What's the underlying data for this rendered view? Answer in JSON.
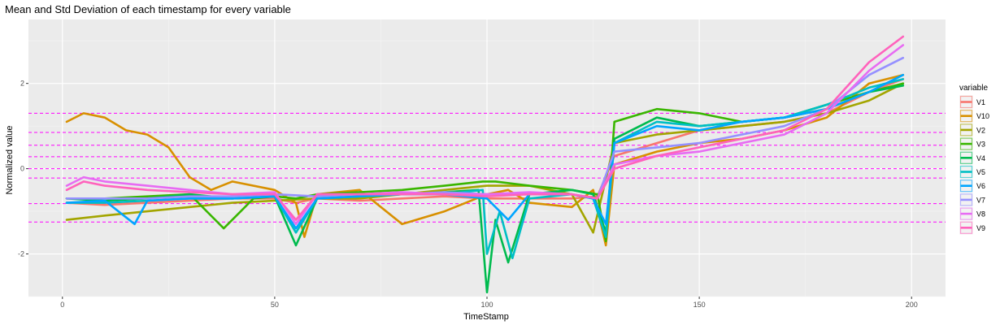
{
  "chart_data": {
    "type": "line",
    "title": "Mean and Std Deviation of each timestamp for every variable",
    "xlabel": "TimeStamp",
    "ylabel": "Normalized value",
    "xlim": [
      -8,
      208
    ],
    "ylim": [
      -3.0,
      3.5
    ],
    "x_ticks": [
      0,
      50,
      100,
      150,
      200
    ],
    "y_ticks": [
      -2,
      0,
      2
    ],
    "grid": true,
    "legend": {
      "title": "variable",
      "position": "right"
    },
    "reference_lines": {
      "style": "dashed",
      "color": "#ff00ff",
      "y": [
        1.3,
        0.85,
        0.55,
        0.28,
        0.0,
        -0.22,
        -0.82,
        -1.25
      ]
    },
    "series": [
      {
        "name": "V1",
        "color": "#F8766D",
        "x": [
          1,
          10,
          20,
          30,
          40,
          50,
          55,
          60,
          70,
          80,
          90,
          100,
          110,
          120,
          126,
          130,
          140,
          150,
          160,
          170,
          180,
          190,
          198
        ],
        "y": [
          -0.8,
          -0.85,
          -0.8,
          -0.75,
          -0.7,
          -0.7,
          -0.8,
          -0.7,
          -0.75,
          -0.7,
          -0.65,
          -0.7,
          -0.7,
          -0.7,
          -0.65,
          0.3,
          0.6,
          0.9,
          1.0,
          1.1,
          1.3,
          1.8,
          2.1
        ]
      },
      {
        "name": "V10",
        "color": "#D89000",
        "x": [
          1,
          5,
          10,
          15,
          20,
          25,
          30,
          35,
          40,
          50,
          55,
          57,
          60,
          70,
          80,
          90,
          100,
          105,
          110,
          120,
          125,
          128,
          130,
          140,
          150,
          160,
          170,
          180,
          190,
          198
        ],
        "y": [
          1.1,
          1.3,
          1.2,
          0.9,
          0.8,
          0.5,
          -0.2,
          -0.5,
          -0.3,
          -0.5,
          -0.8,
          -1.6,
          -0.6,
          -0.5,
          -1.3,
          -1.0,
          -0.6,
          -0.5,
          -0.8,
          -0.9,
          -0.5,
          -1.8,
          0.1,
          0.4,
          0.6,
          0.7,
          0.9,
          1.2,
          2.0,
          2.2
        ]
      },
      {
        "name": "V2",
        "color": "#A3A500",
        "x": [
          1,
          10,
          20,
          30,
          40,
          50,
          60,
          70,
          80,
          90,
          100,
          110,
          120,
          125,
          130,
          140,
          150,
          160,
          170,
          180,
          190,
          198
        ],
        "y": [
          -1.2,
          -1.1,
          -1.0,
          -0.9,
          -0.8,
          -0.75,
          -0.7,
          -0.7,
          -0.6,
          -0.5,
          -0.4,
          -0.4,
          -0.6,
          -1.5,
          0.6,
          0.8,
          0.9,
          1.0,
          1.1,
          1.3,
          1.6,
          2.0
        ]
      },
      {
        "name": "V3",
        "color": "#39B600",
        "x": [
          1,
          10,
          20,
          30,
          38,
          45,
          50,
          55,
          60,
          70,
          80,
          90,
          99,
          102,
          110,
          120,
          126,
          128,
          130,
          140,
          150,
          160,
          170,
          180,
          190,
          198
        ],
        "y": [
          -0.7,
          -0.7,
          -0.65,
          -0.6,
          -1.4,
          -0.7,
          -0.65,
          -0.7,
          -0.6,
          -0.55,
          -0.5,
          -0.4,
          -0.3,
          -0.3,
          -0.4,
          -0.5,
          -0.6,
          -1.7,
          1.1,
          1.4,
          1.3,
          1.1,
          1.2,
          1.5,
          1.8,
          2.0
        ]
      },
      {
        "name": "V4",
        "color": "#00BB4E",
        "x": [
          1,
          10,
          20,
          30,
          40,
          50,
          55,
          60,
          70,
          80,
          90,
          98,
          100,
          102,
          105,
          110,
          120,
          125,
          128,
          130,
          140,
          150,
          160,
          170,
          180,
          190,
          198
        ],
        "y": [
          -0.7,
          -0.75,
          -0.7,
          -0.6,
          -0.7,
          -0.65,
          -1.8,
          -0.7,
          -0.65,
          -0.6,
          -0.55,
          -0.5,
          -2.9,
          -1.2,
          -2.2,
          -0.6,
          -0.5,
          -0.6,
          -1.5,
          0.7,
          1.2,
          1.0,
          1.1,
          1.2,
          1.4,
          1.8,
          1.95
        ]
      },
      {
        "name": "V5",
        "color": "#00BFC4",
        "x": [
          1,
          10,
          20,
          30,
          40,
          50,
          55,
          60,
          70,
          80,
          90,
          99,
          100,
          103,
          106,
          110,
          120,
          125,
          128,
          130,
          140,
          150,
          160,
          170,
          180,
          190,
          198
        ],
        "y": [
          -0.8,
          -0.8,
          -0.75,
          -0.7,
          -0.7,
          -0.65,
          -1.5,
          -0.7,
          -0.65,
          -0.6,
          -0.6,
          -0.5,
          -2.0,
          -1.0,
          -2.1,
          -0.7,
          -0.6,
          -0.7,
          -1.6,
          0.6,
          1.1,
          1.0,
          1.1,
          1.2,
          1.5,
          1.9,
          2.1
        ]
      },
      {
        "name": "V6",
        "color": "#00A5FF",
        "x": [
          1,
          10,
          17,
          20,
          30,
          40,
          50,
          55,
          60,
          70,
          80,
          90,
          100,
          105,
          110,
          120,
          125,
          128,
          130,
          140,
          150,
          160,
          170,
          180,
          190,
          198
        ],
        "y": [
          -0.8,
          -0.75,
          -1.3,
          -0.75,
          -0.7,
          -0.7,
          -0.65,
          -1.4,
          -0.7,
          -0.65,
          -0.6,
          -0.6,
          -0.7,
          -1.2,
          -0.6,
          -0.6,
          -0.7,
          -1.3,
          0.6,
          1.0,
          0.9,
          1.1,
          1.2,
          1.4,
          1.8,
          2.2
        ]
      },
      {
        "name": "V7",
        "color": "#9590FF",
        "x": [
          1,
          10,
          20,
          30,
          40,
          50,
          60,
          70,
          80,
          90,
          100,
          110,
          120,
          126,
          130,
          140,
          150,
          160,
          170,
          180,
          190,
          198
        ],
        "y": [
          -0.7,
          -0.7,
          -0.7,
          -0.65,
          -0.65,
          -0.6,
          -0.65,
          -0.6,
          -0.6,
          -0.55,
          -0.6,
          -0.6,
          -0.6,
          -0.7,
          0.4,
          0.5,
          0.6,
          0.8,
          1.0,
          1.4,
          2.2,
          2.6
        ]
      },
      {
        "name": "V8",
        "color": "#E76BF3",
        "x": [
          1,
          5,
          10,
          20,
          30,
          40,
          50,
          55,
          60,
          70,
          80,
          90,
          100,
          110,
          120,
          126,
          130,
          140,
          150,
          160,
          170,
          180,
          190,
          198
        ],
        "y": [
          -0.4,
          -0.2,
          -0.3,
          -0.4,
          -0.5,
          -0.6,
          -0.55,
          -1.3,
          -0.6,
          -0.6,
          -0.55,
          -0.6,
          -0.6,
          -0.55,
          -0.6,
          -0.7,
          0.1,
          0.3,
          0.4,
          0.6,
          0.8,
          1.3,
          2.3,
          2.9
        ]
      },
      {
        "name": "V9",
        "color": "#FF62BC",
        "x": [
          1,
          5,
          10,
          20,
          30,
          40,
          50,
          55,
          60,
          70,
          80,
          90,
          100,
          110,
          120,
          126,
          130,
          140,
          150,
          160,
          170,
          180,
          190,
          198
        ],
        "y": [
          -0.5,
          -0.3,
          -0.4,
          -0.5,
          -0.55,
          -0.6,
          -0.6,
          -1.2,
          -0.6,
          -0.6,
          -0.6,
          -0.6,
          -0.65,
          -0.6,
          -0.6,
          -0.7,
          0.0,
          0.3,
          0.5,
          0.7,
          0.9,
          1.4,
          2.5,
          3.1
        ]
      }
    ]
  }
}
